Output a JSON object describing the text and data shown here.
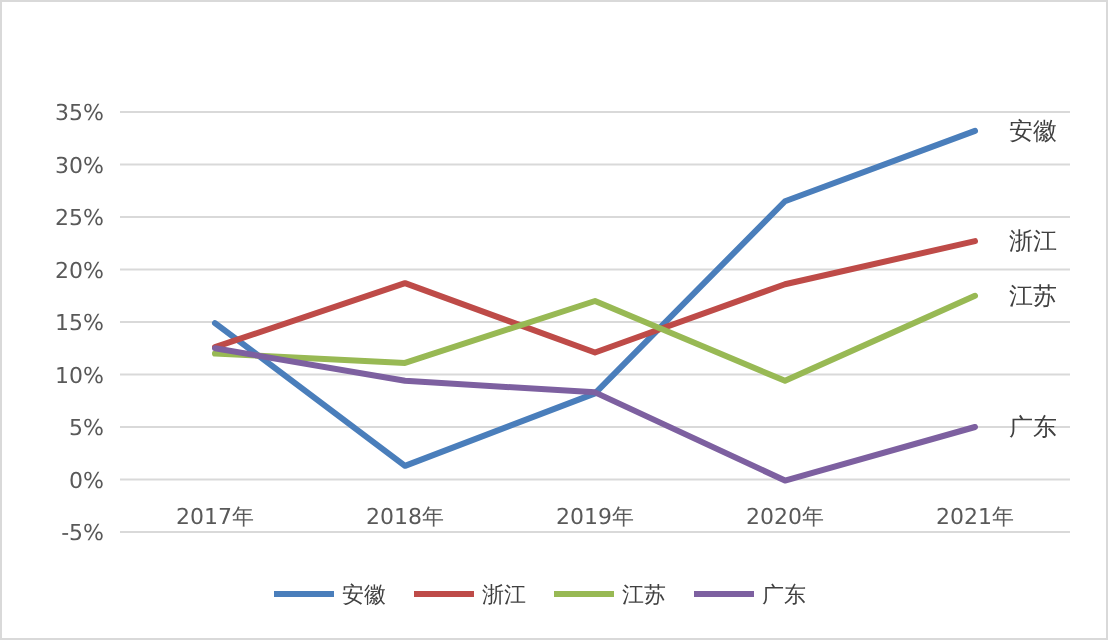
{
  "chart_data": {
    "type": "line",
    "categories": [
      "2017年",
      "2018年",
      "2019年",
      "2020年",
      "2021年"
    ],
    "series": [
      {
        "name": "安徽",
        "color": "#4a7ebb",
        "values": [
          14.9,
          1.3,
          8.2,
          26.5,
          33.2
        ]
      },
      {
        "name": "浙江",
        "color": "#be4b48",
        "values": [
          12.6,
          18.7,
          12.1,
          18.6,
          22.7
        ]
      },
      {
        "name": "江苏",
        "color": "#98b954",
        "values": [
          12.0,
          11.1,
          17.0,
          9.4,
          17.5
        ]
      },
      {
        "name": "广东",
        "color": "#7d60a0",
        "values": [
          12.5,
          9.4,
          8.3,
          -0.1,
          5.0
        ]
      }
    ],
    "ylim": [
      -5,
      35
    ],
    "yticks": [
      {
        "value": -5,
        "label": "-5%"
      },
      {
        "value": 0,
        "label": "0%"
      },
      {
        "value": 5,
        "label": "5%"
      },
      {
        "value": 10,
        "label": "10%"
      },
      {
        "value": 15,
        "label": "15%"
      },
      {
        "value": 20,
        "label": "20%"
      },
      {
        "value": 25,
        "label": "25%"
      },
      {
        "value": 30,
        "label": "30%"
      },
      {
        "value": 35,
        "label": "35%"
      }
    ],
    "grid": "y",
    "legend": "bottom"
  }
}
